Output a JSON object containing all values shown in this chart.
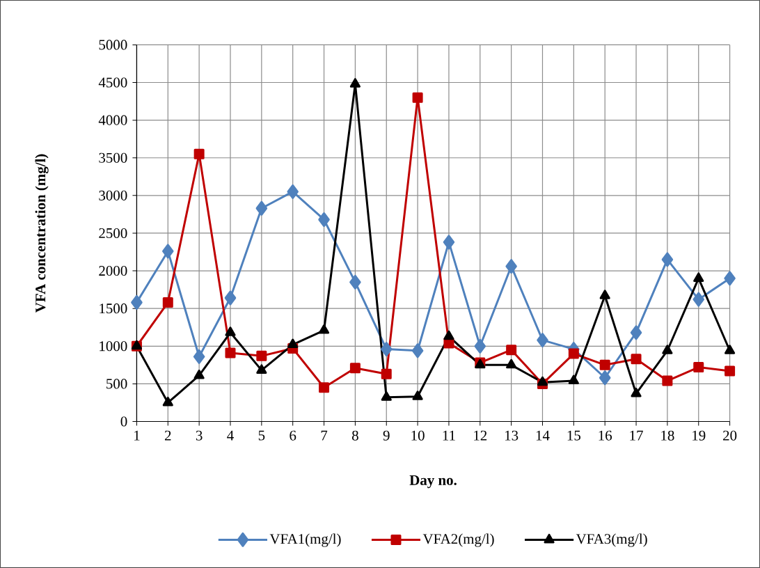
{
  "chart_data": {
    "type": "line",
    "xlabel": "Day no.",
    "ylabel": "VFA concentration (mg/l)",
    "categories": [
      "1",
      "2",
      "3",
      "4",
      "5",
      "6",
      "7",
      "8",
      "9",
      "10",
      "11",
      "12",
      "13",
      "14",
      "15",
      "16",
      "17",
      "18",
      "19",
      "20"
    ],
    "series": [
      {
        "name": "VFA1(mg/l)",
        "color": "#4f81bd",
        "marker": "diamond",
        "values": [
          1580,
          2260,
          860,
          1640,
          2830,
          3050,
          2680,
          1850,
          960,
          940,
          2380,
          1000,
          2060,
          1080,
          960,
          580,
          1180,
          2150,
          1620,
          1900
        ]
      },
      {
        "name": "VFA2(mg/l)",
        "color": "#c00000",
        "marker": "square",
        "values": [
          1000,
          1580,
          3550,
          910,
          870,
          970,
          450,
          710,
          630,
          4300,
          1040,
          780,
          950,
          500,
          900,
          750,
          830,
          540,
          720,
          670
        ]
      },
      {
        "name": "VFA3(mg/l)",
        "color": "#000000",
        "marker": "triangle",
        "values": [
          1000,
          250,
          610,
          1180,
          680,
          1020,
          1210,
          4480,
          320,
          330,
          1130,
          750,
          750,
          520,
          540,
          1670,
          370,
          940,
          1900,
          940
        ]
      }
    ],
    "ylim": [
      0,
      5000
    ],
    "yticks": [
      0,
      500,
      1000,
      1500,
      2000,
      2500,
      3000,
      3500,
      4000,
      4500,
      5000
    ],
    "grid": true,
    "legend": "bottom",
    "line_style": "solid"
  }
}
